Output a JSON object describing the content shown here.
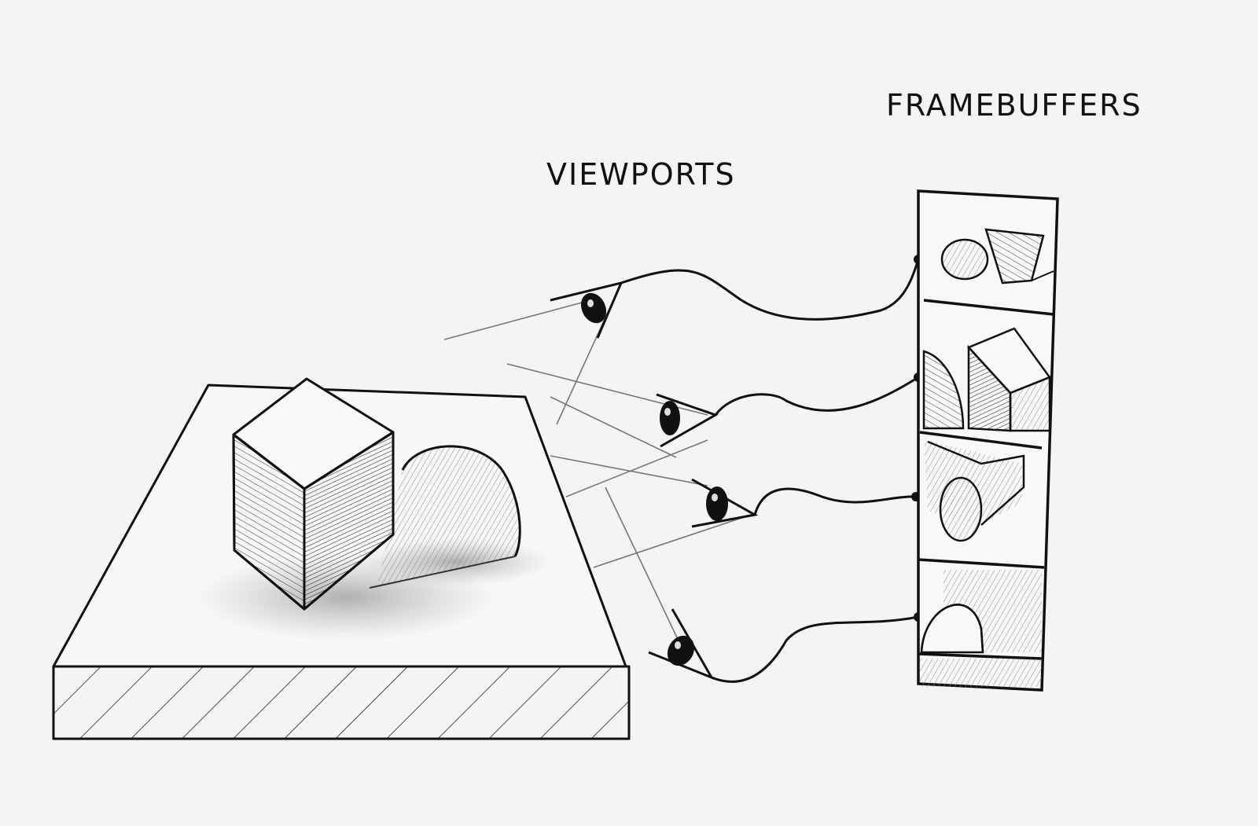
{
  "labels": {
    "viewports": "VIEWPORTS",
    "framebuffers": "FRAMEBUFFERS"
  },
  "colors": {
    "paper": "#f4f4f2",
    "ink": "#111111",
    "pencil": "#777777"
  }
}
